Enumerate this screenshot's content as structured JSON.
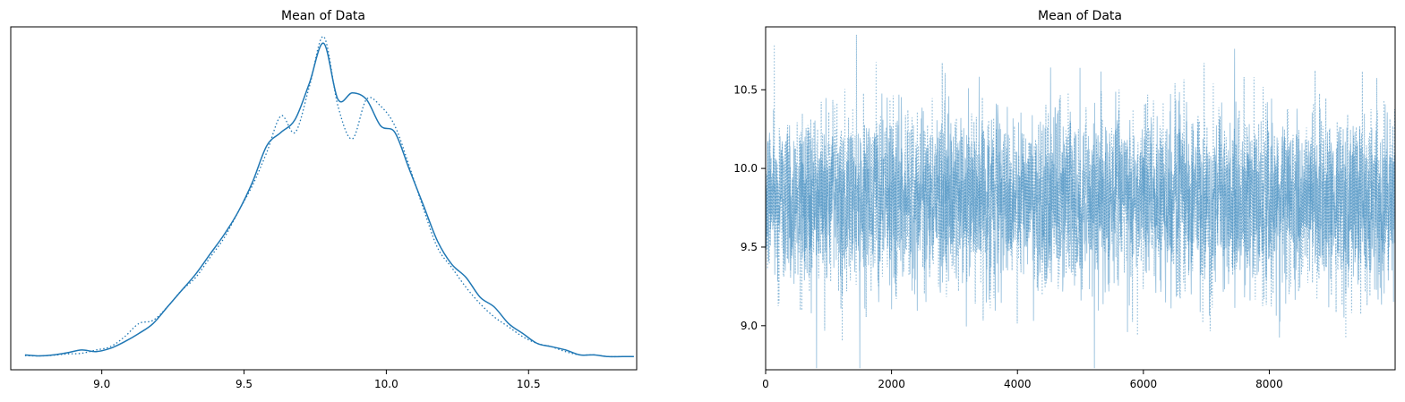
{
  "chart_data": [
    {
      "type": "line",
      "title": "Mean of Data",
      "xlabel": "",
      "ylabel": "",
      "xlim": [
        8.68,
        10.88
      ],
      "ylim": [
        -0.04,
        1.0
      ],
      "xticks": [
        9.0,
        9.5,
        10.0,
        10.5
      ],
      "xtick_labels": [
        "9.0",
        "9.5",
        "10.0",
        "10.5"
      ],
      "yticks": [],
      "grid": false,
      "legend": "none",
      "series": [
        {
          "style": "solid",
          "color": "#1f77b4",
          "x": [
            8.73,
            8.78,
            8.83,
            8.88,
            8.93,
            8.98,
            9.03,
            9.08,
            9.13,
            9.18,
            9.23,
            9.28,
            9.33,
            9.38,
            9.43,
            9.48,
            9.53,
            9.58,
            9.63,
            9.68,
            9.73,
            9.78,
            9.83,
            9.88,
            9.93,
            9.98,
            10.03,
            10.08,
            10.13,
            10.18,
            10.23,
            10.28,
            10.33,
            10.38,
            10.43,
            10.48,
            10.53,
            10.58,
            10.63,
            10.68,
            10.73,
            10.78,
            10.83,
            10.87
          ],
          "y": [
            0.005,
            0.002,
            0.005,
            0.012,
            0.02,
            0.015,
            0.025,
            0.045,
            0.07,
            0.1,
            0.15,
            0.2,
            0.25,
            0.31,
            0.37,
            0.44,
            0.53,
            0.64,
            0.68,
            0.72,
            0.83,
            0.95,
            0.78,
            0.8,
            0.78,
            0.7,
            0.68,
            0.57,
            0.46,
            0.35,
            0.28,
            0.24,
            0.18,
            0.15,
            0.1,
            0.07,
            0.04,
            0.03,
            0.02,
            0.005,
            0.005,
            0.0,
            0.0,
            0.0
          ]
        },
        {
          "style": "dotted",
          "color": "#1f77b4",
          "x": [
            8.73,
            8.78,
            8.83,
            8.88,
            8.93,
            8.98,
            9.03,
            9.08,
            9.13,
            9.18,
            9.23,
            9.28,
            9.33,
            9.38,
            9.43,
            9.48,
            9.53,
            9.58,
            9.63,
            9.68,
            9.73,
            9.78,
            9.83,
            9.88,
            9.93,
            9.98,
            10.03,
            10.08,
            10.13,
            10.18,
            10.23,
            10.28,
            10.33,
            10.38,
            10.43,
            10.48,
            10.53,
            10.58,
            10.63,
            10.68,
            10.73,
            10.78,
            10.83,
            10.87
          ],
          "y": [
            0.003,
            0.002,
            0.004,
            0.008,
            0.01,
            0.02,
            0.03,
            0.06,
            0.1,
            0.11,
            0.15,
            0.2,
            0.24,
            0.3,
            0.36,
            0.44,
            0.52,
            0.62,
            0.73,
            0.68,
            0.82,
            0.97,
            0.76,
            0.66,
            0.78,
            0.76,
            0.7,
            0.58,
            0.45,
            0.33,
            0.27,
            0.21,
            0.16,
            0.12,
            0.09,
            0.06,
            0.04,
            0.03,
            0.015,
            0.005,
            0.005,
            0.0,
            0.0,
            0.0
          ]
        }
      ]
    },
    {
      "type": "line",
      "title": "Mean of Data",
      "xlabel": "",
      "ylabel": "",
      "xlim": [
        0,
        9999
      ],
      "ylim": [
        8.72,
        10.9
      ],
      "xticks": [
        0,
        2000,
        4000,
        6000,
        8000
      ],
      "xtick_labels": [
        "0",
        "2000",
        "4000",
        "6000",
        "8000"
      ],
      "yticks": [
        9.0,
        9.5,
        10.0,
        10.5
      ],
      "ytick_labels": [
        "9.0",
        "9.5",
        "10.0",
        "10.5"
      ],
      "grid": false,
      "legend": "none",
      "series": [
        {
          "style": "solid",
          "color": "#1f77b4",
          "n_samples": 10000,
          "mean": 9.8,
          "sd": 0.28,
          "min": 8.73,
          "max": 10.88
        },
        {
          "style": "dotted",
          "color": "#1f77b4",
          "n_samples": 10000,
          "mean": 9.8,
          "sd": 0.28,
          "min": 8.85,
          "max": 10.85
        }
      ]
    }
  ]
}
